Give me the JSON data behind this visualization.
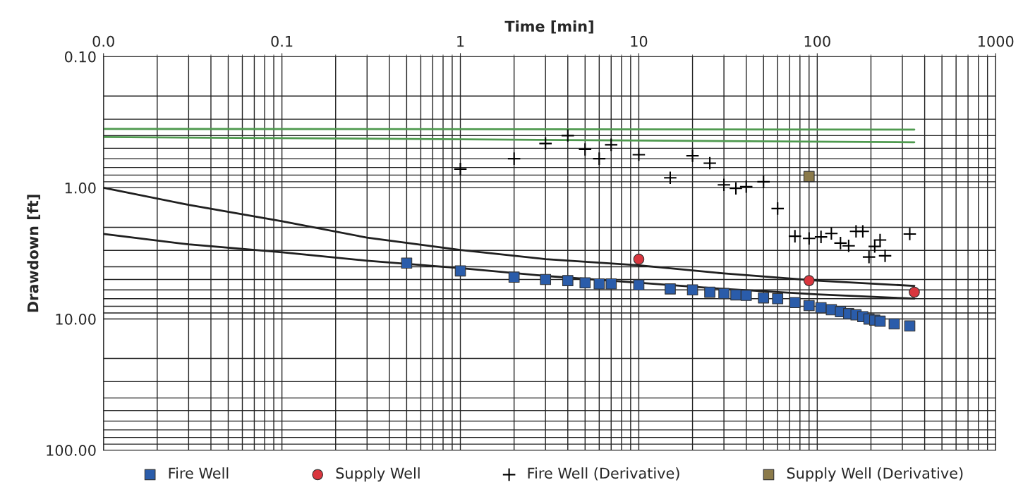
{
  "chart_data": {
    "type": "scatter",
    "xlabel": "Time [min]",
    "ylabel": "Drawdown [ft]",
    "log": "xy",
    "grid": true,
    "legend": "bottom",
    "xlim": [
      0.01,
      1000
    ],
    "ylim": [
      100,
      0.1
    ],
    "xticks": [
      {
        "value": 0.01,
        "label": "0.0"
      },
      0.1,
      1,
      10,
      100,
      1000
    ],
    "yticks": [
      {
        "value": 0.1,
        "label": "0.10"
      },
      {
        "value": 1,
        "label": "1.00"
      },
      {
        "value": 10,
        "label": "10.00"
      },
      {
        "value": 100,
        "label": "100.00"
      }
    ],
    "series": [
      {
        "type": "line",
        "color": "#4f9a4f",
        "marker": "none",
        "x": [
          0.01,
          350
        ],
        "values": [
          0.356,
          0.36
        ]
      },
      {
        "type": "line",
        "color": "#4f9a4f",
        "marker": "none",
        "x": [
          0.01,
          350
        ],
        "values": [
          0.41,
          0.45
        ]
      },
      {
        "type": "line",
        "color": "#202020",
        "marker": "none",
        "x": [
          0.01,
          0.03,
          0.1,
          0.3,
          1,
          3,
          10,
          30,
          100,
          350
        ],
        "values": [
          1.0,
          1.35,
          1.8,
          2.4,
          2.98,
          3.5,
          3.9,
          4.5,
          5.1,
          5.6
        ]
      },
      {
        "type": "line",
        "color": "#202020",
        "marker": "none",
        "x": [
          0.01,
          0.03,
          0.1,
          0.3,
          1,
          3,
          10,
          30,
          100,
          350
        ],
        "values": [
          2.25,
          2.7,
          3.1,
          3.6,
          4.1,
          4.7,
          5.3,
          5.9,
          6.5,
          7.0
        ]
      },
      {
        "name": "Fire Well",
        "color": "#2a5caa",
        "marker": "square",
        "x": [
          0.5,
          1,
          2,
          3,
          4,
          5,
          6,
          7,
          10,
          15,
          20,
          25,
          30,
          35,
          40,
          50,
          60,
          75,
          90,
          105,
          120,
          135,
          150,
          165,
          180,
          195,
          210,
          225,
          270,
          330
        ],
        "values": [
          3.75,
          4.3,
          4.8,
          5.0,
          5.1,
          5.3,
          5.4,
          5.4,
          5.5,
          5.9,
          6.0,
          6.25,
          6.4,
          6.55,
          6.6,
          6.9,
          7.0,
          7.5,
          7.9,
          8.2,
          8.5,
          8.8,
          9.1,
          9.3,
          9.6,
          10.0,
          10.2,
          10.4,
          10.9,
          11.3
        ]
      },
      {
        "name": "Supply Well",
        "color": "#d9363e",
        "marker": "circle",
        "x": [
          10,
          90,
          350
        ],
        "values": [
          3.5,
          5.1,
          6.25
        ]
      },
      {
        "name": "Fire Well (Derivative)",
        "color": "#000000",
        "marker": "cross",
        "x": [
          1,
          2,
          3,
          4,
          5,
          6,
          7,
          10,
          15,
          20,
          25,
          30,
          35,
          40,
          50,
          60,
          75,
          90,
          105,
          120,
          135,
          150,
          165,
          180,
          195,
          210,
          225,
          240,
          330
        ],
        "values": [
          0.72,
          0.6,
          0.46,
          0.4,
          0.51,
          0.6,
          0.47,
          0.56,
          0.84,
          0.57,
          0.65,
          0.95,
          1.01,
          0.98,
          0.9,
          1.44,
          2.34,
          2.43,
          2.37,
          2.23,
          2.64,
          2.77,
          2.15,
          2.15,
          3.37,
          2.8,
          2.5,
          3.3,
          2.25
        ]
      },
      {
        "name": "Supply Well (Derivative)",
        "color": "#8b7a4a",
        "marker": "square",
        "x": [
          90
        ],
        "values": [
          0.82
        ]
      }
    ]
  }
}
